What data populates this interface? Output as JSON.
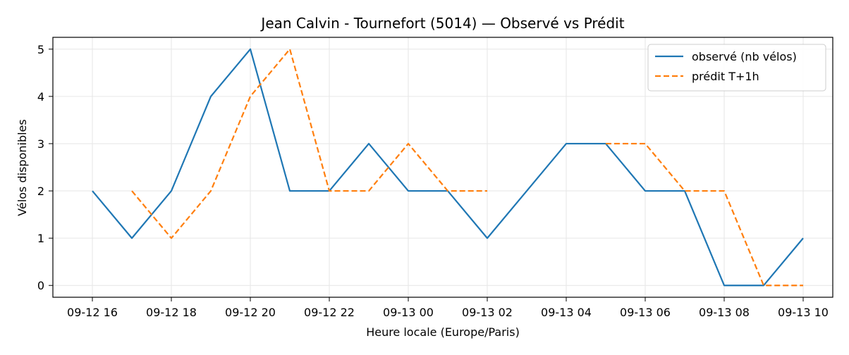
{
  "chart_data": {
    "type": "line",
    "title": "Jean Calvin - Tournefort (5014) — Observé vs Prédit",
    "xlabel": "Heure locale (Europe/Paris)",
    "ylabel": "Vélos disponibles",
    "x_tick_labels": [
      "09-12 16",
      "09-12 18",
      "09-12 20",
      "09-12 22",
      "09-13 00",
      "09-13 02",
      "09-13 04",
      "09-13 06",
      "09-13 08",
      "09-13 10"
    ],
    "y_ticks": [
      0,
      1,
      2,
      3,
      4,
      5
    ],
    "ylim": [
      -0.25,
      5.25
    ],
    "xlim": [
      "09-12 15:00",
      "09-13 10:45"
    ],
    "grid": true,
    "legend_position": "top-right",
    "series": [
      {
        "name": "observé (nb vélos)",
        "color": "#1f77b4",
        "dash": "solid",
        "x": [
          "09-12 16:00",
          "09-12 17:00",
          "09-12 18:00",
          "09-12 19:00",
          "09-12 20:00",
          "09-12 21:00",
          "09-12 22:00",
          "09-12 23:00",
          "09-13 00:00",
          "09-13 01:00",
          "09-13 02:00",
          "09-13 03:00",
          "09-13 04:00",
          "09-13 05:00",
          "09-13 06:00",
          "09-13 07:00",
          "09-13 08:00",
          "09-13 09:00",
          "09-13 10:00"
        ],
        "values": [
          2,
          1,
          2,
          4,
          5,
          2,
          2,
          3,
          2,
          2,
          1,
          2,
          3,
          3,
          2,
          2,
          0,
          0,
          1
        ]
      },
      {
        "name": "prédit T+1h",
        "color": "#ff7f0e",
        "dash": "dashed",
        "x": [
          "09-12 17:00",
          "09-12 18:00",
          "09-12 19:00",
          "09-12 20:00",
          "09-12 21:00",
          "09-12 22:00",
          "09-12 23:00",
          "09-13 00:00",
          "09-13 01:00",
          "09-13 02:00",
          "09-13 05:00",
          "09-13 06:00",
          "09-13 07:00",
          "09-13 08:00",
          "09-13 09:00",
          "09-13 10:00"
        ],
        "values": [
          2,
          1,
          2,
          4,
          5,
          2,
          2,
          3,
          2,
          2,
          3,
          3,
          2,
          2,
          0,
          0
        ]
      }
    ]
  }
}
